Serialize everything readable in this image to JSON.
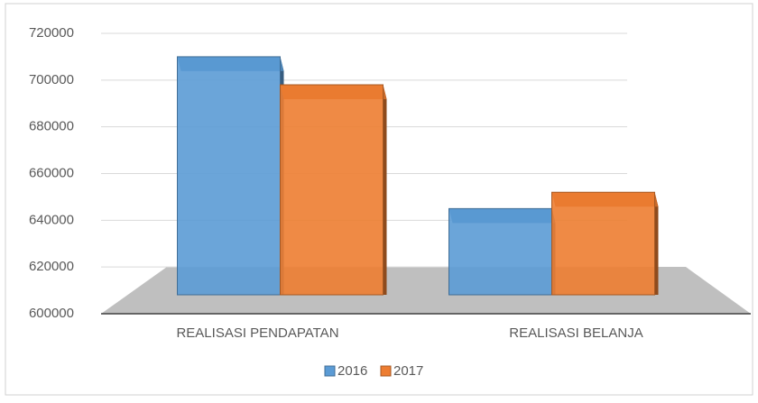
{
  "chart_data": {
    "type": "bar3d",
    "categories": [
      "REALISASI PENDAPATAN",
      "REALISASI BELANJA"
    ],
    "series": [
      {
        "name": "2016",
        "color": "#5b9bd5",
        "values": [
          710000,
          645000
        ]
      },
      {
        "name": "2017",
        "color": "#ed7d31",
        "values": [
          698000,
          652000
        ]
      }
    ],
    "ylim": [
      600000,
      720000
    ],
    "yticks": [
      600000,
      620000,
      640000,
      660000,
      680000,
      700000,
      720000
    ],
    "grid": true,
    "legend": "bottom"
  }
}
